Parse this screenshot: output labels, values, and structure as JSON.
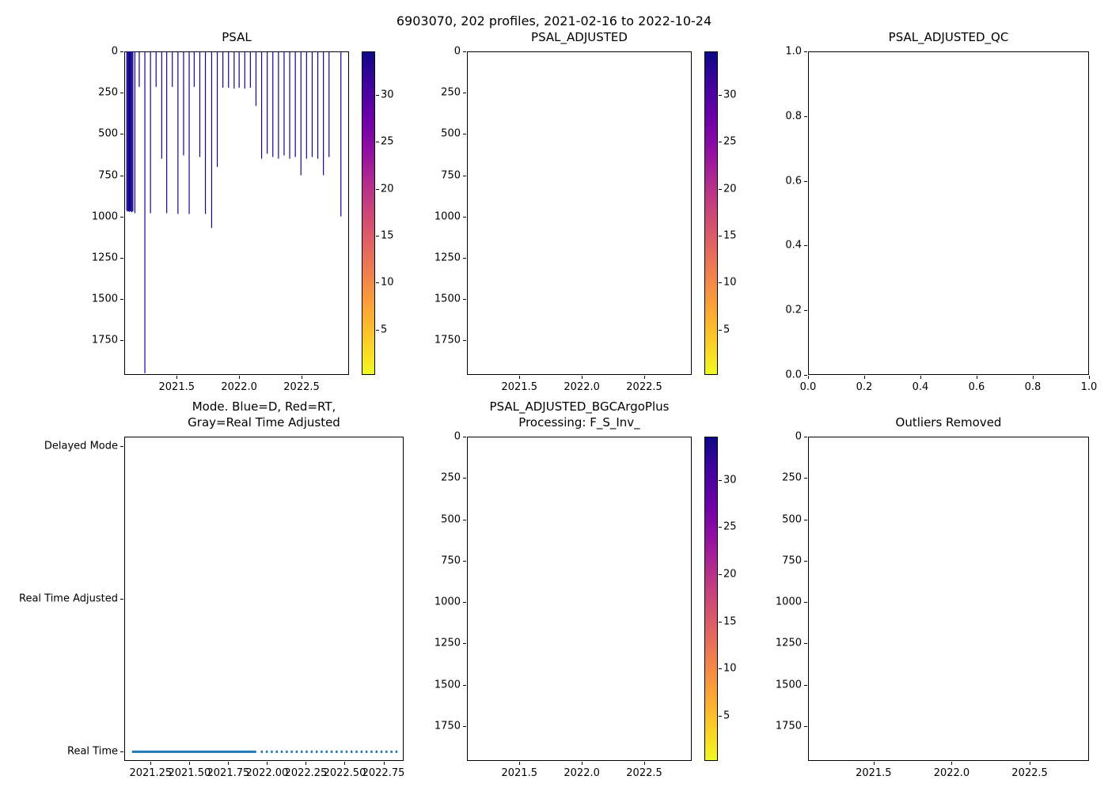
{
  "title": "6903070, 202 profiles, 2021-02-16 to 2022-10-24",
  "colors": {
    "profile": "#14058c",
    "mode_line": "#1f77b4",
    "axes_edge": "#000000",
    "plasma_reversed": [
      "#0d0887",
      "#41049d",
      "#6a00a8",
      "#8f0da4",
      "#b12a90",
      "#cc4778",
      "#e16462",
      "#f2844b",
      "#fca636",
      "#fcce25",
      "#f0f921"
    ]
  },
  "chart_data": [
    {
      "id": "psal",
      "type": "scatter-profiles",
      "title": "PSAL",
      "xlim": [
        2021.08,
        2022.88
      ],
      "ylim": [
        0,
        1960
      ],
      "y_inverted": true,
      "xticks": {
        "values": [
          2021.5,
          2022.0,
          2022.5
        ],
        "labels": [
          "2021.5",
          "2022.0",
          "2022.5"
        ]
      },
      "yticks": {
        "values": [
          0,
          250,
          500,
          750,
          1000,
          1250,
          1500,
          1750
        ],
        "labels": [
          "0",
          "250",
          "500",
          "750",
          "1000",
          "1250",
          "1500",
          "1750"
        ]
      },
      "colorbar": {
        "vmin": 0.2,
        "vmax": 34.6,
        "ticks": {
          "values": [
            30,
            25,
            20,
            15,
            10,
            5
          ],
          "labels": [
            "30",
            "25",
            "20",
            "15",
            "10",
            "5"
          ]
        }
      },
      "profiles": [
        [
          2021.1,
          965
        ],
        [
          2021.107,
          970
        ],
        [
          2021.114,
          968
        ],
        [
          2021.121,
          972
        ],
        [
          2021.128,
          966
        ],
        [
          2021.135,
          971
        ],
        [
          2021.142,
          974
        ],
        [
          2021.149,
          968
        ],
        [
          2021.165,
          980
        ],
        [
          2021.2,
          215
        ],
        [
          2021.245,
          1950
        ],
        [
          2021.29,
          980
        ],
        [
          2021.335,
          215
        ],
        [
          2021.38,
          650
        ],
        [
          2021.42,
          980
        ],
        [
          2021.465,
          215
        ],
        [
          2021.51,
          985
        ],
        [
          2021.555,
          630
        ],
        [
          2021.6,
          985
        ],
        [
          2021.64,
          215
        ],
        [
          2021.685,
          640
        ],
        [
          2021.73,
          985
        ],
        [
          2021.78,
          1070
        ],
        [
          2021.825,
          700
        ],
        [
          2021.87,
          220
        ],
        [
          2021.915,
          220
        ],
        [
          2021.96,
          225
        ],
        [
          2022.0,
          220
        ],
        [
          2022.045,
          225
        ],
        [
          2022.09,
          220
        ],
        [
          2022.135,
          330
        ],
        [
          2022.18,
          650
        ],
        [
          2022.225,
          620
        ],
        [
          2022.27,
          640
        ],
        [
          2022.315,
          650
        ],
        [
          2022.36,
          630
        ],
        [
          2022.405,
          650
        ],
        [
          2022.45,
          640
        ],
        [
          2022.495,
          750
        ],
        [
          2022.54,
          650
        ],
        [
          2022.585,
          640
        ],
        [
          2022.63,
          650
        ],
        [
          2022.675,
          750
        ],
        [
          2022.72,
          640
        ],
        [
          2022.815,
          1000
        ]
      ]
    },
    {
      "id": "psal_adjusted",
      "type": "empty",
      "title": "PSAL_ADJUSTED",
      "xlim": [
        2021.08,
        2022.88
      ],
      "ylim": [
        0,
        1960
      ],
      "y_inverted": true,
      "xticks": {
        "values": [
          2021.5,
          2022.0,
          2022.5
        ],
        "labels": [
          "2021.5",
          "2022.0",
          "2022.5"
        ]
      },
      "yticks": {
        "values": [
          0,
          250,
          500,
          750,
          1000,
          1250,
          1500,
          1750
        ],
        "labels": [
          "0",
          "250",
          "500",
          "750",
          "1000",
          "1250",
          "1500",
          "1750"
        ]
      },
      "colorbar": {
        "vmin": 0.2,
        "vmax": 34.6,
        "ticks": {
          "values": [
            30,
            25,
            20,
            15,
            10,
            5
          ],
          "labels": [
            "30",
            "25",
            "20",
            "15",
            "10",
            "5"
          ]
        }
      },
      "profiles": []
    },
    {
      "id": "psal_adjusted_qc",
      "type": "empty",
      "title": "PSAL_ADJUSTED_QC",
      "xlim": [
        0,
        1
      ],
      "ylim": [
        0,
        1
      ],
      "y_inverted": false,
      "xticks": {
        "values": [
          0,
          0.2,
          0.4,
          0.6,
          0.8,
          1
        ],
        "labels": [
          "0.0",
          "0.2",
          "0.4",
          "0.6",
          "0.8",
          "1.0"
        ]
      },
      "yticks": {
        "values": [
          0,
          0.2,
          0.4,
          0.6,
          0.8,
          1
        ],
        "labels": [
          "0.0",
          "0.2",
          "0.4",
          "0.6",
          "0.8",
          "1.0"
        ]
      },
      "profiles": []
    },
    {
      "id": "mode",
      "type": "category-line",
      "title": "Mode. Blue=D, Red=RT,\nGray=Real Time Adjusted",
      "xlim": [
        2021.08,
        2022.88
      ],
      "ylim": [
        -0.06,
        2.06
      ],
      "y_inverted": false,
      "xticks": {
        "values": [
          2021.25,
          2021.5,
          2021.75,
          2022.0,
          2022.25,
          2022.5,
          2022.75
        ],
        "labels": [
          "2021.25",
          "2021.50",
          "2021.75",
          "2022.00",
          "2022.25",
          "2022.50",
          "2022.75"
        ]
      },
      "yticks": {
        "values": [
          2,
          1,
          0
        ],
        "labels": [
          "Delayed Mode",
          "Real Time Adjusted",
          "Real Time"
        ]
      },
      "mode_line": {
        "category": "Real Time",
        "y": 0,
        "solid_x": [
          2021.13,
          2021.93
        ],
        "dotted_x": [
          2021.96,
          2022.84
        ]
      },
      "profiles": []
    },
    {
      "id": "psal_adjusted_bgc",
      "type": "empty",
      "title": "PSAL_ADJUSTED_BGCArgoPlus\nProcessing: F_S_Inv_",
      "xlim": [
        2021.08,
        2022.88
      ],
      "ylim": [
        0,
        1960
      ],
      "y_inverted": true,
      "xticks": {
        "values": [
          2021.5,
          2022.0,
          2022.5
        ],
        "labels": [
          "2021.5",
          "2022.0",
          "2022.5"
        ]
      },
      "yticks": {
        "values": [
          0,
          250,
          500,
          750,
          1000,
          1250,
          1500,
          1750
        ],
        "labels": [
          "0",
          "250",
          "500",
          "750",
          "1000",
          "1250",
          "1500",
          "1750"
        ]
      },
      "colorbar": {
        "vmin": 0.2,
        "vmax": 34.6,
        "ticks": {
          "values": [
            30,
            25,
            20,
            15,
            10,
            5
          ],
          "labels": [
            "30",
            "25",
            "20",
            "15",
            "10",
            "5"
          ]
        }
      },
      "profiles": []
    },
    {
      "id": "outliers_removed",
      "type": "empty",
      "title": "Outliers Removed",
      "xlim": [
        2021.08,
        2022.88
      ],
      "ylim": [
        0,
        1960
      ],
      "y_inverted": true,
      "xticks": {
        "values": [
          2021.5,
          2022.0,
          2022.5
        ],
        "labels": [
          "2021.5",
          "2022.0",
          "2022.5"
        ]
      },
      "yticks": {
        "values": [
          0,
          250,
          500,
          750,
          1000,
          1250,
          1500,
          1750
        ],
        "labels": [
          "0",
          "250",
          "500",
          "750",
          "1000",
          "1250",
          "1500",
          "1750"
        ]
      },
      "profiles": []
    }
  ]
}
